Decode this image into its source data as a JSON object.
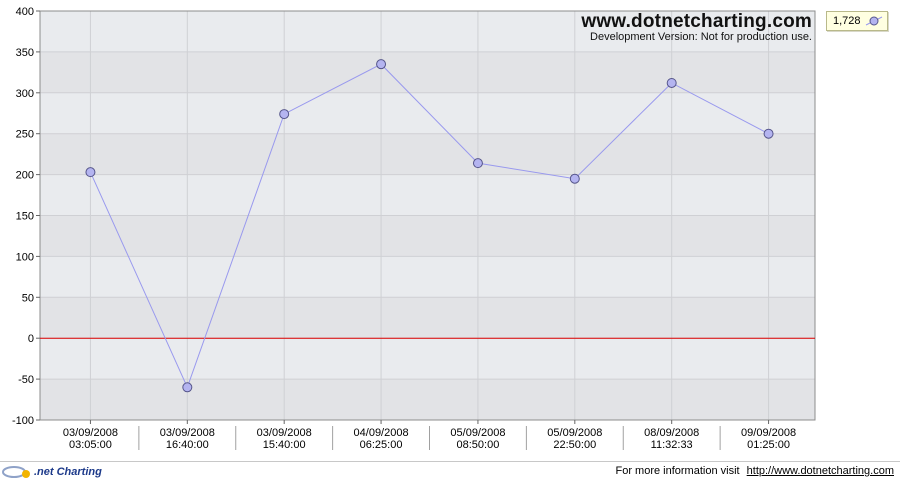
{
  "chart_data": {
    "type": "line",
    "categories": [
      [
        "03/09/2008",
        "03:05:00"
      ],
      [
        "03/09/2008",
        "16:40:00"
      ],
      [
        "03/09/2008",
        "15:40:00"
      ],
      [
        "04/09/2008",
        "06:25:00"
      ],
      [
        "05/09/2008",
        "08:50:00"
      ],
      [
        "05/09/2008",
        "22:50:00"
      ],
      [
        "08/09/2008",
        "11:32:33"
      ],
      [
        "09/09/2008",
        "01:25:00"
      ]
    ],
    "series": [
      {
        "name": "1,728",
        "values": [
          203,
          -60,
          274,
          335,
          214,
          195,
          312,
          250
        ],
        "color": "#9999ee"
      }
    ],
    "ylim": [
      -100,
      400
    ],
    "yticks": [
      -100,
      -50,
      0,
      50,
      100,
      150,
      200,
      250,
      300,
      350,
      400
    ],
    "grid": true,
    "legend_placement": "top-right",
    "zero_line_color": "#dd0000",
    "plot_background": "#e6e8ec"
  },
  "watermark": {
    "title": "www.dotnetcharting.com",
    "subtitle": "Development Version: Not for production use."
  },
  "legend": {
    "label": "1,728"
  },
  "footer": {
    "logo_text": ".net Charting",
    "info_text": "For more information visit",
    "link_text": "http://www.dotnetcharting.com"
  }
}
